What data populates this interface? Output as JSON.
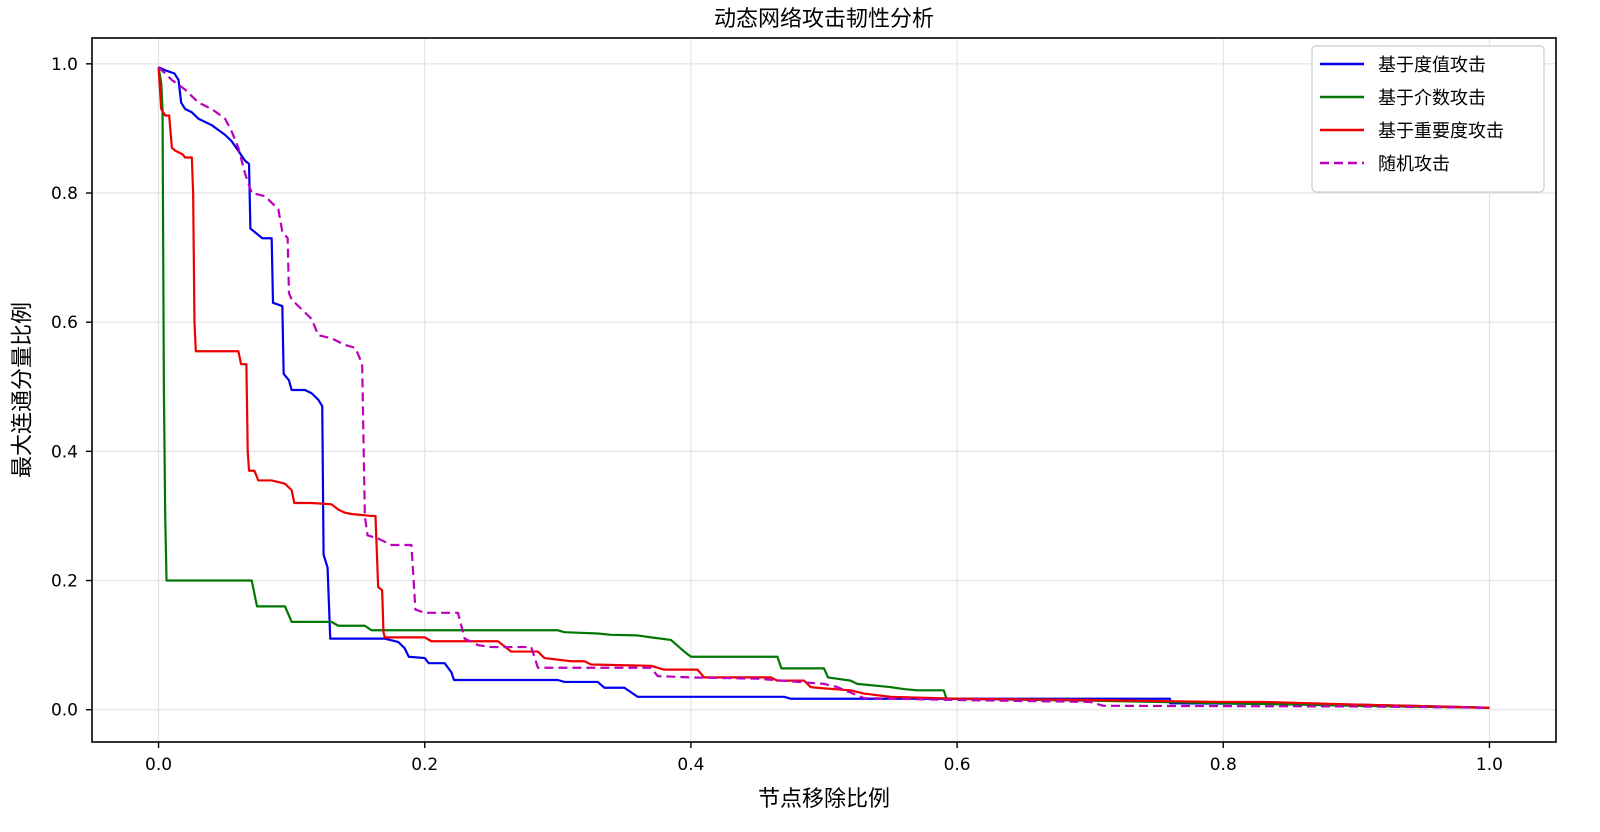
{
  "chart_data": {
    "type": "line",
    "title": "动态网络攻击韧性分析",
    "xlabel": "节点移除比例",
    "ylabel": "最大连通分量比例",
    "xlim": [
      -0.05,
      1.05
    ],
    "ylim": [
      -0.05,
      1.04
    ],
    "xticks": [
      0.0,
      0.2,
      0.4,
      0.6,
      0.8,
      1.0
    ],
    "yticks": [
      0.0,
      0.2,
      0.4,
      0.6,
      0.8,
      1.0
    ],
    "grid": true,
    "legend_position": "top-right",
    "series": [
      {
        "name": "基于度值攻击",
        "color": "#0000ee",
        "style": "solid",
        "points": [
          [
            0.0,
            0.995
          ],
          [
            0.005,
            0.99
          ],
          [
            0.012,
            0.985
          ],
          [
            0.015,
            0.975
          ],
          [
            0.017,
            0.94
          ],
          [
            0.02,
            0.93
          ],
          [
            0.025,
            0.925
          ],
          [
            0.03,
            0.915
          ],
          [
            0.04,
            0.905
          ],
          [
            0.05,
            0.89
          ],
          [
            0.055,
            0.88
          ],
          [
            0.06,
            0.865
          ],
          [
            0.065,
            0.85
          ],
          [
            0.068,
            0.845
          ],
          [
            0.069,
            0.745
          ],
          [
            0.072,
            0.74
          ],
          [
            0.078,
            0.73
          ],
          [
            0.085,
            0.73
          ],
          [
            0.086,
            0.63
          ],
          [
            0.093,
            0.625
          ],
          [
            0.094,
            0.52
          ],
          [
            0.098,
            0.51
          ],
          [
            0.1,
            0.495
          ],
          [
            0.11,
            0.495
          ],
          [
            0.115,
            0.49
          ],
          [
            0.12,
            0.48
          ],
          [
            0.123,
            0.47
          ],
          [
            0.124,
            0.24
          ],
          [
            0.127,
            0.22
          ],
          [
            0.129,
            0.11
          ],
          [
            0.17,
            0.11
          ],
          [
            0.18,
            0.105
          ],
          [
            0.185,
            0.095
          ],
          [
            0.188,
            0.082
          ],
          [
            0.2,
            0.08
          ],
          [
            0.203,
            0.072
          ],
          [
            0.215,
            0.072
          ],
          [
            0.22,
            0.058
          ],
          [
            0.222,
            0.046
          ],
          [
            0.3,
            0.046
          ],
          [
            0.305,
            0.043
          ],
          [
            0.33,
            0.043
          ],
          [
            0.335,
            0.034
          ],
          [
            0.35,
            0.034
          ],
          [
            0.355,
            0.027
          ],
          [
            0.36,
            0.02
          ],
          [
            0.47,
            0.02
          ],
          [
            0.475,
            0.017
          ],
          [
            0.6,
            0.017
          ],
          [
            0.76,
            0.017
          ],
          [
            0.76,
            0.01
          ],
          [
            0.9,
            0.008
          ],
          [
            1.0,
            0.003
          ]
        ]
      },
      {
        "name": "基于介数攻击",
        "color": "#007700",
        "style": "solid",
        "points": [
          [
            0.0,
            0.995
          ],
          [
            0.002,
            0.97
          ],
          [
            0.003,
            0.93
          ],
          [
            0.004,
            0.5
          ],
          [
            0.005,
            0.3
          ],
          [
            0.006,
            0.2
          ],
          [
            0.07,
            0.2
          ],
          [
            0.074,
            0.16
          ],
          [
            0.095,
            0.16
          ],
          [
            0.1,
            0.136
          ],
          [
            0.13,
            0.136
          ],
          [
            0.135,
            0.13
          ],
          [
            0.155,
            0.13
          ],
          [
            0.16,
            0.123
          ],
          [
            0.3,
            0.123
          ],
          [
            0.305,
            0.12
          ],
          [
            0.33,
            0.118
          ],
          [
            0.34,
            0.116
          ],
          [
            0.36,
            0.115
          ],
          [
            0.37,
            0.112
          ],
          [
            0.385,
            0.108
          ],
          [
            0.395,
            0.09
          ],
          [
            0.4,
            0.082
          ],
          [
            0.465,
            0.082
          ],
          [
            0.468,
            0.064
          ],
          [
            0.5,
            0.064
          ],
          [
            0.503,
            0.05
          ],
          [
            0.52,
            0.045
          ],
          [
            0.525,
            0.04
          ],
          [
            0.55,
            0.035
          ],
          [
            0.56,
            0.032
          ],
          [
            0.57,
            0.03
          ],
          [
            0.59,
            0.03
          ],
          [
            0.592,
            0.017
          ],
          [
            0.7,
            0.014
          ],
          [
            0.8,
            0.01
          ],
          [
            0.9,
            0.006
          ],
          [
            1.0,
            0.003
          ]
        ]
      },
      {
        "name": "基于重要度攻击",
        "color": "#ee0000",
        "style": "solid",
        "points": [
          [
            0.0,
            0.995
          ],
          [
            0.002,
            0.93
          ],
          [
            0.005,
            0.92
          ],
          [
            0.008,
            0.92
          ],
          [
            0.01,
            0.87
          ],
          [
            0.013,
            0.865
          ],
          [
            0.018,
            0.86
          ],
          [
            0.02,
            0.855
          ],
          [
            0.025,
            0.855
          ],
          [
            0.026,
            0.8
          ],
          [
            0.027,
            0.6
          ],
          [
            0.028,
            0.555
          ],
          [
            0.06,
            0.555
          ],
          [
            0.062,
            0.535
          ],
          [
            0.066,
            0.535
          ],
          [
            0.067,
            0.4
          ],
          [
            0.068,
            0.37
          ],
          [
            0.072,
            0.37
          ],
          [
            0.075,
            0.355
          ],
          [
            0.085,
            0.355
          ],
          [
            0.095,
            0.35
          ],
          [
            0.1,
            0.34
          ],
          [
            0.102,
            0.32
          ],
          [
            0.115,
            0.32
          ],
          [
            0.13,
            0.318
          ],
          [
            0.135,
            0.31
          ],
          [
            0.14,
            0.305
          ],
          [
            0.145,
            0.303
          ],
          [
            0.16,
            0.3
          ],
          [
            0.163,
            0.3
          ],
          [
            0.165,
            0.19
          ],
          [
            0.168,
            0.185
          ],
          [
            0.169,
            0.12
          ],
          [
            0.17,
            0.112
          ],
          [
            0.2,
            0.112
          ],
          [
            0.205,
            0.106
          ],
          [
            0.21,
            0.106
          ],
          [
            0.255,
            0.106
          ],
          [
            0.265,
            0.09
          ],
          [
            0.285,
            0.09
          ],
          [
            0.29,
            0.08
          ],
          [
            0.31,
            0.075
          ],
          [
            0.32,
            0.075
          ],
          [
            0.325,
            0.07
          ],
          [
            0.37,
            0.068
          ],
          [
            0.38,
            0.062
          ],
          [
            0.405,
            0.062
          ],
          [
            0.41,
            0.05
          ],
          [
            0.46,
            0.05
          ],
          [
            0.465,
            0.045
          ],
          [
            0.485,
            0.045
          ],
          [
            0.49,
            0.035
          ],
          [
            0.5,
            0.033
          ],
          [
            0.52,
            0.03
          ],
          [
            0.53,
            0.025
          ],
          [
            0.55,
            0.02
          ],
          [
            0.6,
            0.017
          ],
          [
            0.7,
            0.015
          ],
          [
            0.8,
            0.012
          ],
          [
            0.83,
            0.012
          ],
          [
            0.9,
            0.008
          ],
          [
            1.0,
            0.003
          ]
        ]
      },
      {
        "name": "随机攻击",
        "color": "#bb00bb",
        "style": "dashed",
        "points": [
          [
            0.0,
            0.995
          ],
          [
            0.01,
            0.975
          ],
          [
            0.02,
            0.96
          ],
          [
            0.03,
            0.94
          ],
          [
            0.04,
            0.93
          ],
          [
            0.05,
            0.915
          ],
          [
            0.055,
            0.895
          ],
          [
            0.06,
            0.87
          ],
          [
            0.065,
            0.83
          ],
          [
            0.07,
            0.8
          ],
          [
            0.08,
            0.795
          ],
          [
            0.085,
            0.785
          ],
          [
            0.09,
            0.775
          ],
          [
            0.093,
            0.74
          ],
          [
            0.097,
            0.73
          ],
          [
            0.098,
            0.645
          ],
          [
            0.1,
            0.635
          ],
          [
            0.11,
            0.615
          ],
          [
            0.115,
            0.605
          ],
          [
            0.12,
            0.58
          ],
          [
            0.13,
            0.575
          ],
          [
            0.14,
            0.565
          ],
          [
            0.148,
            0.56
          ],
          [
            0.153,
            0.535
          ],
          [
            0.155,
            0.3
          ],
          [
            0.157,
            0.27
          ],
          [
            0.165,
            0.265
          ],
          [
            0.175,
            0.255
          ],
          [
            0.19,
            0.255
          ],
          [
            0.193,
            0.155
          ],
          [
            0.2,
            0.15
          ],
          [
            0.225,
            0.15
          ],
          [
            0.23,
            0.11
          ],
          [
            0.24,
            0.1
          ],
          [
            0.25,
            0.097
          ],
          [
            0.28,
            0.097
          ],
          [
            0.285,
            0.065
          ],
          [
            0.37,
            0.065
          ],
          [
            0.375,
            0.052
          ],
          [
            0.4,
            0.05
          ],
          [
            0.45,
            0.048
          ],
          [
            0.5,
            0.04
          ],
          [
            0.51,
            0.035
          ],
          [
            0.53,
            0.018
          ],
          [
            0.6,
            0.015
          ],
          [
            0.7,
            0.012
          ],
          [
            0.71,
            0.006
          ],
          [
            0.72,
            0.006
          ],
          [
            0.9,
            0.005
          ],
          [
            1.0,
            0.003
          ]
        ]
      }
    ]
  }
}
